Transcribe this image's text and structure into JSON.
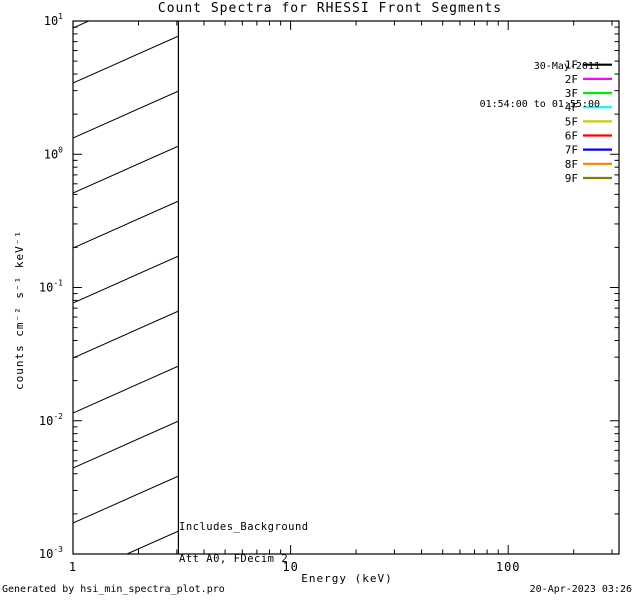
{
  "chart_data": {
    "type": "line",
    "title": "Count Spectra for RHESSI Front Segments",
    "xlabel": "Energy (keV)",
    "ylabel": "counts cm⁻² s⁻¹ keV⁻¹",
    "xscale": "log",
    "yscale": "log",
    "xlim": [
      1,
      323
    ],
    "ylim": [
      0.001,
      10
    ],
    "x_major_ticks": [
      1,
      10,
      100
    ],
    "x_tick_labels": [
      "1",
      "10",
      "100"
    ],
    "y_major_ticks": [
      10,
      1,
      0.1,
      0.01,
      0.001
    ],
    "grid": false,
    "legend_position": "top-right",
    "legend_header": {
      "date": "30-May-2011",
      "interval": "01:54:00 to 01:55:00"
    },
    "series": [
      {
        "name": "1F",
        "color": "#000000",
        "values": []
      },
      {
        "name": "2F",
        "color": "#ff00ff",
        "values": []
      },
      {
        "name": "3F",
        "color": "#00ee00",
        "values": []
      },
      {
        "name": "4F",
        "color": "#00ffff",
        "values": []
      },
      {
        "name": "5F",
        "color": "#cccc00",
        "values": []
      },
      {
        "name": "6F",
        "color": "#ff0000",
        "values": []
      },
      {
        "name": "7F",
        "color": "#0000ff",
        "values": []
      },
      {
        "name": "8F",
        "color": "#ff7f00",
        "values": []
      },
      {
        "name": "9F",
        "color": "#808000",
        "values": []
      }
    ],
    "hatched_region": {
      "x_from": 1,
      "x_to": 3.05
    },
    "annotations": {
      "line1": "Includes_Background",
      "line2": "Att A0, FDecim 2"
    }
  },
  "footer": {
    "generated_by": "Generated by hsi_min_spectra_plot.pro",
    "timestamp": "20-Apr-2023 03:26"
  }
}
